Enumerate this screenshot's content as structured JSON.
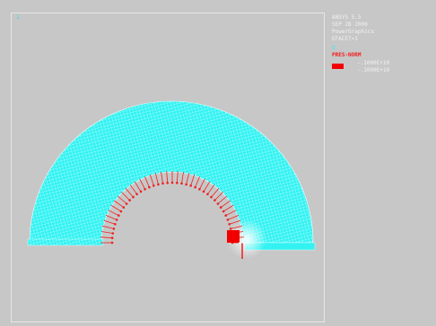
{
  "window": {
    "axis_tag": "1"
  },
  "legend": {
    "header_lines": [
      "ANSYS 5.5",
      "SEP 28 2000",
      "PowerGraphics",
      "EFACET=1"
    ],
    "node_label": "U",
    "load_label": "PRES-NORM",
    "scale_values": [
      "-.1000E+10",
      "-.1000E+10"
    ]
  },
  "colors": {
    "background": "#c7c7c7",
    "mesh": "#33f2f2",
    "mesh_lines": "#e8ffff",
    "pressure_arrows": "#f01f1f",
    "frame": "#e6e6e6"
  }
}
